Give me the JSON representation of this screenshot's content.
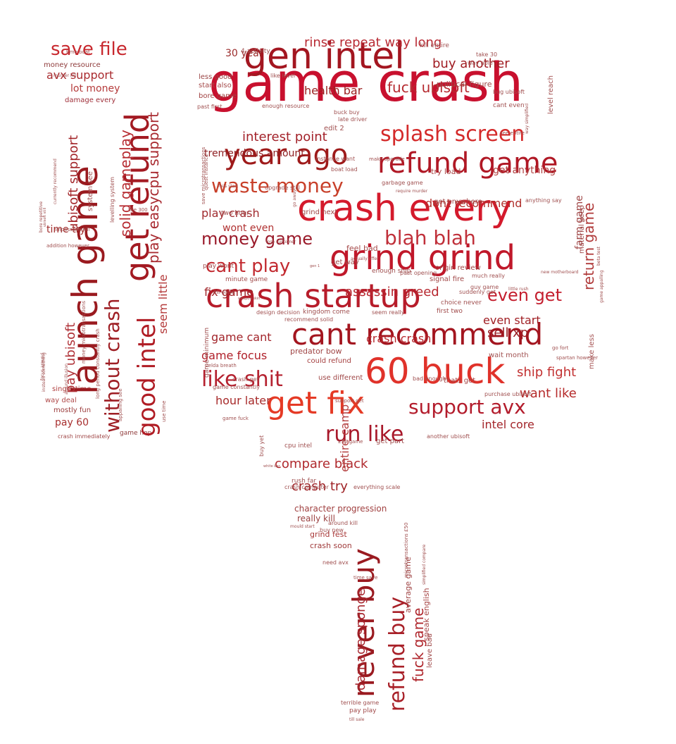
{
  "words": [
    {
      "text": "game crash",
      "color": "#c8102e"
    },
    {
      "text": "gen intel",
      "color": "#a31620"
    },
    {
      "text": "crash every",
      "color": "#d41a2c"
    },
    {
      "text": "refund game",
      "color": "#b01825"
    },
    {
      "text": "year ago",
      "color": "#9e1a1a"
    },
    {
      "text": "grind grind",
      "color": "#c0182a"
    },
    {
      "text": "crash startup",
      "color": "#b71c2a"
    },
    {
      "text": "cant recommend",
      "color": "#a3151f"
    },
    {
      "text": "60 buck",
      "color": "#e0322a"
    },
    {
      "text": "get fix",
      "color": "#e53a25"
    },
    {
      "text": "splash screen",
      "color": "#d42a2a"
    },
    {
      "text": "waste money",
      "color": "#c8402a"
    },
    {
      "text": "blah blah",
      "color": "#c0303a"
    },
    {
      "text": "like shit",
      "color": "#b52230"
    },
    {
      "text": "support avx",
      "color": "#b31c2c"
    },
    {
      "text": "run like",
      "color": "#a8182a"
    },
    {
      "text": "money game",
      "color": "#9a1a2a"
    },
    {
      "text": "cant play",
      "color": "#c22a30"
    },
    {
      "text": "even get",
      "color": "#c41e2e"
    },
    {
      "text": "rinse repeat way long",
      "color": "#b82a33"
    },
    {
      "text": "buy another",
      "color": "#a01c22"
    },
    {
      "text": "fuck ubisoft",
      "color": "#b52a2f"
    },
    {
      "text": "health bar",
      "color": "#9a2020"
    },
    {
      "text": "interest point",
      "color": "#a3222a"
    },
    {
      "text": "tremendous amount",
      "color": "#8f1f22"
    },
    {
      "text": "30 year",
      "color": "#9a2a2a"
    },
    {
      "text": "dont recommend",
      "color": "#b0302c"
    },
    {
      "text": "play crash",
      "color": "#a02a2e"
    },
    {
      "text": "wont even",
      "color": "#b03030"
    },
    {
      "text": "fix game",
      "color": "#9f2226"
    },
    {
      "text": "assassin greed",
      "color": "#b72830"
    },
    {
      "text": "game cant",
      "color": "#a2242a"
    },
    {
      "text": "game focus",
      "color": "#b0202a"
    },
    {
      "text": "crash crash",
      "color": "#b82a30"
    },
    {
      "text": "even start",
      "color": "#a01f24"
    },
    {
      "text": "sell xp",
      "color": "#9a1e24"
    },
    {
      "text": "ship fight",
      "color": "#c23030"
    },
    {
      "text": "want like",
      "color": "#b52a2a"
    },
    {
      "text": "intel core",
      "color": "#a3252a"
    },
    {
      "text": "hour later",
      "color": "#a72a2a"
    },
    {
      "text": "compare black",
      "color": "#b02a2e"
    },
    {
      "text": "crash try",
      "color": "#9e2226"
    },
    {
      "text": "save file",
      "color": "#c8282e"
    },
    {
      "text": "avx support",
      "color": "#a92a2e"
    },
    {
      "text": "lot money",
      "color": "#b53a3a"
    },
    {
      "text": "damage every",
      "color": "#a0303a"
    },
    {
      "text": "money resource",
      "color": "#8e3a3a"
    },
    {
      "text": "time try",
      "color": "#a02a2a"
    },
    {
      "text": "pay 60",
      "color": "#a83030"
    },
    {
      "text": "way deal",
      "color": "#b04a4a"
    },
    {
      "text": "mostly fun",
      "color": "#9a3a3a"
    },
    {
      "text": "single time",
      "color": "#b04040"
    },
    {
      "text": "game hop",
      "color": "#8f3a3a"
    },
    {
      "text": "crash immediately",
      "color": "#a04848"
    },
    {
      "text": "launch game",
      "color": "#9a1a1f"
    },
    {
      "text": "get refund",
      "color": "#a31a22"
    },
    {
      "text": "good intel",
      "color": "#b01c24"
    },
    {
      "text": "without crash",
      "color": "#9e1e24"
    },
    {
      "text": "ubisoft support",
      "color": "#a3262a"
    },
    {
      "text": "pay ubisoft",
      "color": "#b03238"
    },
    {
      "text": "solid gameplay",
      "color": "#b72c32"
    },
    {
      "text": "play easycpu support",
      "color": "#a82a30"
    },
    {
      "text": "seem little",
      "color": "#b43a3a"
    },
    {
      "text": "never buy",
      "color": "#9a1a20"
    },
    {
      "text": "refund buy",
      "color": "#a82028"
    },
    {
      "text": "fuck game",
      "color": "#b0282e"
    },
    {
      "text": "damage sponge",
      "color": "#a82830"
    },
    {
      "text": "entire camp",
      "color": "#b44040"
    },
    {
      "text": "character progression",
      "color": "#a04040"
    },
    {
      "text": "really kill",
      "color": "#9a4040"
    },
    {
      "text": "grind fest",
      "color": "#a83838"
    },
    {
      "text": "crash soon",
      "color": "#a03c3c"
    },
    {
      "text": "origin review",
      "color": "#a04040"
    },
    {
      "text": "return game",
      "color": "#b03a3a"
    },
    {
      "text": "farm game",
      "color": "#a04848"
    },
    {
      "text": "get anything",
      "color": "#b04040"
    },
    {
      "text": "try load",
      "color": "#a84444"
    },
    {
      "text": "political figure",
      "color": "#a04a4a"
    },
    {
      "text": "less good",
      "color": "#9a4545"
    },
    {
      "text": "start also",
      "color": "#a54a4a"
    },
    {
      "text": "bore game",
      "color": "#a04040"
    },
    {
      "text": "predator bow",
      "color": "#a04545"
    },
    {
      "text": "could refund",
      "color": "#a54040"
    },
    {
      "text": "use different",
      "color": "#a04848"
    },
    {
      "text": "thats get",
      "color": "#a54545"
    },
    {
      "text": "speak english",
      "color": "#a84848"
    },
    {
      "text": "leave bad",
      "color": "#a04a4a"
    },
    {
      "text": "average game",
      "color": "#a04545"
    },
    {
      "text": "signal fire",
      "color": "#a24848"
    },
    {
      "text": "material keep",
      "color": "#a04a4a"
    },
    {
      "text": "level reach",
      "color": "#a25050"
    },
    {
      "text": "make less",
      "color": "#a35050"
    },
    {
      "text": "cant even",
      "color": "#a05050"
    },
    {
      "text": "terrible game",
      "color": "#a05050"
    },
    {
      "text": "pay play",
      "color": "#a04848"
    },
    {
      "text": "grind next",
      "color": "#a04848"
    },
    {
      "text": "feel bad",
      "color": "#a54a4a"
    },
    {
      "text": "get way",
      "color": "#a04a4a"
    },
    {
      "text": "wait month",
      "color": "#a05050"
    },
    {
      "text": "minute game",
      "color": "#a04a4a"
    },
    {
      "text": "get anywhere",
      "color": "#a04848"
    },
    {
      "text": "two hour",
      "color": "#a04848"
    },
    {
      "text": "play wont",
      "color": "#a04848"
    },
    {
      "text": "first two",
      "color": "#a04a4a"
    },
    {
      "text": "crash get",
      "color": "#a05050"
    },
    {
      "text": "game constantly",
      "color": "#a05050"
    },
    {
      "text": "game minimum",
      "color": "#a05050"
    },
    {
      "text": "cpu intel",
      "color": "#a05050"
    },
    {
      "text": "buy yet",
      "color": "#a05050"
    },
    {
      "text": "get part",
      "color": "#a05050"
    },
    {
      "text": "£50 game",
      "color": "#a05050"
    },
    {
      "text": "another ubisoft",
      "color": "#a05050"
    },
    {
      "text": "edit 2",
      "color": "#a05050"
    },
    {
      "text": "late driver",
      "color": "#a05050"
    },
    {
      "text": "4 activity",
      "color": "#a05050"
    },
    {
      "text": "kill entire",
      "color": "#a05050"
    },
    {
      "text": "way able",
      "color": "#a05050"
    },
    {
      "text": "take 30",
      "color": "#a05050"
    },
    {
      "text": "like level",
      "color": "#a05050"
    },
    {
      "text": "bug ubisoft",
      "color": "#a05050"
    },
    {
      "text": "past first",
      "color": "#a05050"
    },
    {
      "text": "enough resource",
      "color": "#a05050"
    },
    {
      "text": "buck buy",
      "color": "#a05050"
    },
    {
      "text": "instance want",
      "color": "#a05050"
    },
    {
      "text": "make upgrade",
      "color": "#a05050"
    },
    {
      "text": "boat load",
      "color": "#a05050"
    },
    {
      "text": "garbage game",
      "color": "#a05050"
    },
    {
      "text": "upgrade still",
      "color": "#a05050"
    },
    {
      "text": "anything say",
      "color": "#a05050"
    },
    {
      "text": "see entire",
      "color": "#a05050"
    },
    {
      "text": "recommend solid",
      "color": "#a05050"
    },
    {
      "text": "kingdom come",
      "color": "#a05050"
    },
    {
      "text": "design decision",
      "color": "#a05050"
    },
    {
      "text": "seem really",
      "color": "#a05050"
    },
    {
      "text": "enough ship",
      "color": "#a05050"
    },
    {
      "text": "past opening",
      "color": "#a05050"
    },
    {
      "text": "much really",
      "color": "#a05050"
    },
    {
      "text": "guy game",
      "color": "#a05050"
    },
    {
      "text": "choice never",
      "color": "#a05050"
    },
    {
      "text": "suddenly get",
      "color": "#a05050"
    },
    {
      "text": "purchase ubisoft",
      "color": "#a05050"
    },
    {
      "text": "bad enough",
      "color": "#a05050"
    },
    {
      "text": "support get",
      "color": "#a05050"
    },
    {
      "text": "rush far",
      "color": "#a05050"
    },
    {
      "text": "everything scale",
      "color": "#a05050"
    },
    {
      "text": "crash computer",
      "color": "#a05050"
    },
    {
      "text": "around kill",
      "color": "#a05050"
    },
    {
      "text": "need avx",
      "color": "#a05050"
    },
    {
      "text": "time save",
      "color": "#a05050"
    },
    {
      "text": "buy new",
      "color": "#a05050"
    },
    {
      "text": "zelda breath",
      "color": "#a05050"
    },
    {
      "text": "spartan however",
      "color": "#a05050"
    },
    {
      "text": "go fort",
      "color": "#a05050"
    },
    {
      "text": "time boat",
      "color": "#a05050"
    },
    {
      "text": "murder kill",
      "color": "#a05050"
    },
    {
      "text": "addition however",
      "color": "#a05050"
    },
    {
      "text": "impossible kill",
      "color": "#a05050"
    },
    {
      "text": "like 300",
      "color": "#a05050"
    },
    {
      "text": "system see",
      "color": "#a05050"
    },
    {
      "text": "levelling system",
      "color": "#a05050"
    },
    {
      "text": "bore repetitive",
      "color": "#a05050"
    },
    {
      "text": "currently recommend",
      "color": "#a05050"
    },
    {
      "text": "focus around",
      "color": "#a05050"
    },
    {
      "text": "money microtransactions",
      "color": "#a05050"
    },
    {
      "text": "long period constantly crash",
      "color": "#a05050"
    },
    {
      "text": "around illusion",
      "color": "#a05050"
    },
    {
      "text": "instead something",
      "color": "#a05050"
    },
    {
      "text": "appalling see",
      "color": "#a05050"
    },
    {
      "text": "use time",
      "color": "#a05050"
    },
    {
      "text": "save microtransactions",
      "color": "#a05050"
    },
    {
      "text": "quest instance",
      "color": "#a05050"
    },
    {
      "text": "fails start",
      "color": "#a05050"
    },
    {
      "text": "game appalling",
      "color": "#a05050"
    },
    {
      "text": "microtransactions £50",
      "color": "#a05050"
    },
    {
      "text": "simplified compare",
      "color": "#a05050"
    },
    {
      "text": "mould start",
      "color": "#a05050"
    },
    {
      "text": "still would",
      "color": "#a05050"
    },
    {
      "text": "weapon skin",
      "color": "#a05050"
    },
    {
      "text": "white bar",
      "color": "#a05050"
    },
    {
      "text": "game fuck",
      "color": "#a05050"
    },
    {
      "text": "new motherboard",
      "color": "#a05050"
    },
    {
      "text": "little rush",
      "color": "#a05050"
    },
    {
      "text": "till sale",
      "color": "#a05050"
    },
    {
      "text": "lose customer",
      "color": "#a05050"
    },
    {
      "text": "gen 1",
      "color": "#a05050"
    },
    {
      "text": "actually offer",
      "color": "#a05050"
    },
    {
      "text": "way simplified",
      "color": "#a05050"
    },
    {
      "text": "beta test",
      "color": "#a05050"
    },
    {
      "text": "go away",
      "color": "#a05050"
    },
    {
      "text": "require murder",
      "color": "#a05050"
    },
    {
      "text": "ubisoft still",
      "color": "#a05050"
    },
    {
      "text": "basically everything",
      "color": "#a05050"
    }
  ]
}
